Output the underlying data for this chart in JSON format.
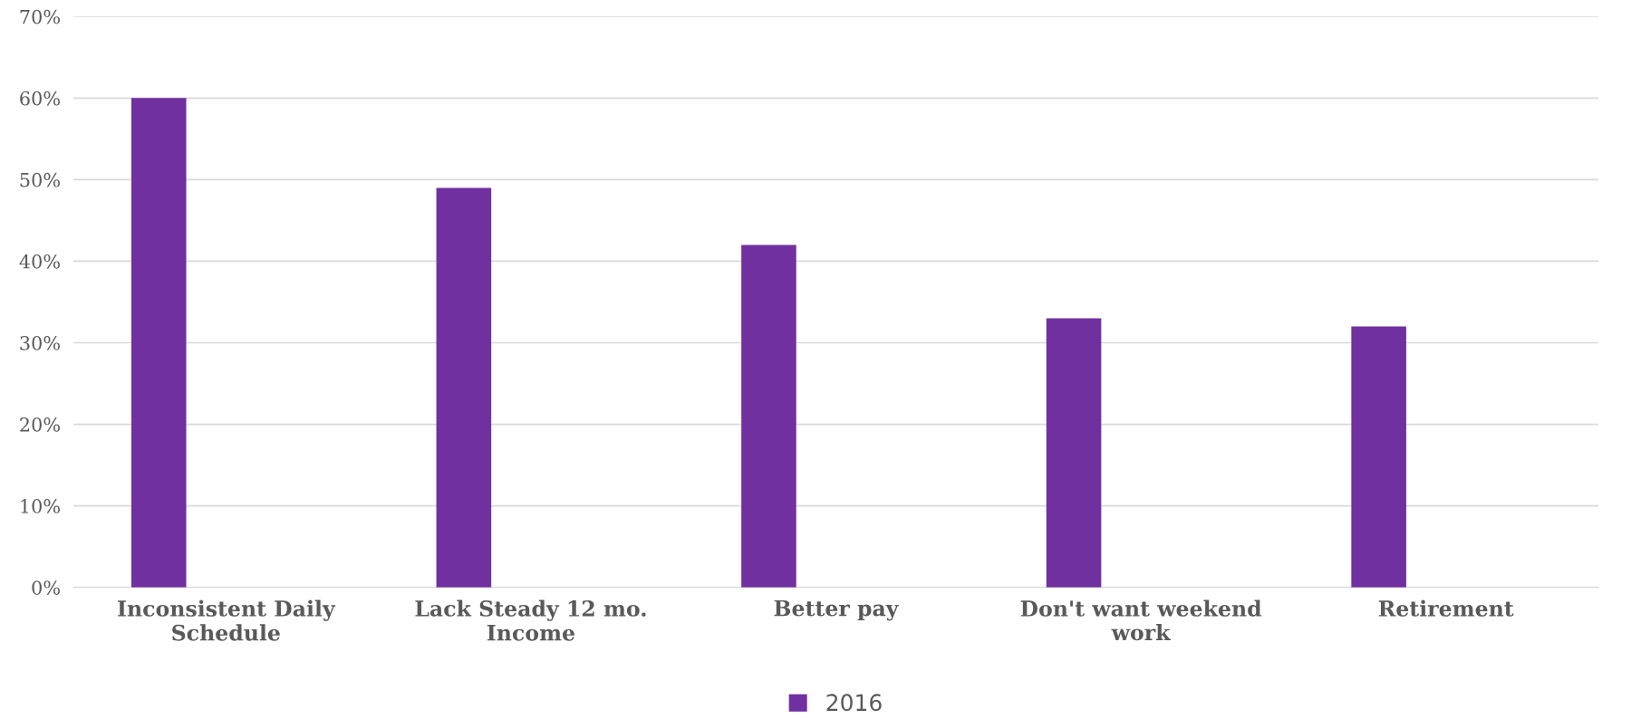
{
  "chart_data": {
    "type": "bar",
    "categories": [
      "Inconsistent Daily\nSchedule",
      "Lack Steady 12 mo.\nIncome",
      "Better pay",
      "Don't want weekend\nwork",
      "Retirement"
    ],
    "series": [
      {
        "name": "2016",
        "color": "#7030a0",
        "values": [
          60,
          49,
          42,
          33,
          32
        ]
      }
    ],
    "ylim": [
      0,
      70
    ],
    "yticks": [
      {
        "value": 0,
        "label": "0%"
      },
      {
        "value": 10,
        "label": "10%"
      },
      {
        "value": 20,
        "label": "20%"
      },
      {
        "value": 30,
        "label": "30%"
      },
      {
        "value": 40,
        "label": "40%"
      },
      {
        "value": 50,
        "label": "50%"
      },
      {
        "value": 60,
        "label": "60%"
      },
      {
        "value": 70,
        "label": "70%"
      }
    ],
    "grid": "y",
    "legend": "bottom"
  }
}
